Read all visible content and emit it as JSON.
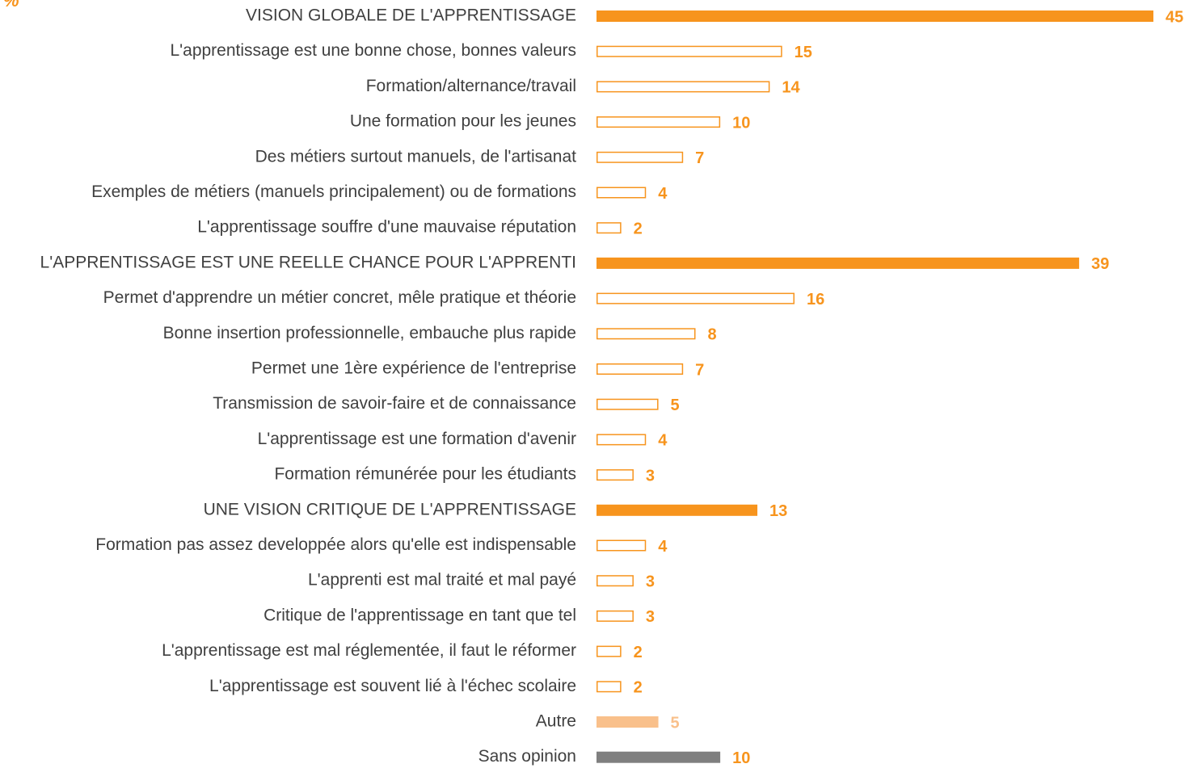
{
  "chart_data": {
    "type": "bar",
    "orientation": "horizontal",
    "unit_label": "%",
    "categories": [
      "VISION GLOBALE DE L'APPRENTISSAGE",
      "L'apprentissage est une bonne chose, bonnes valeurs",
      "Formation/alternance/travail",
      "Une formation pour les jeunes",
      "Des métiers surtout manuels, de l'artisanat",
      "Exemples de métiers (manuels principalement) ou de formations",
      "L'apprentissage souffre d'une mauvaise réputation",
      "L'APPRENTISSAGE EST UNE REELLE CHANCE POUR L'APPRENTI",
      "Permet d'apprendre un métier concret, mêle pratique et théorie",
      "Bonne insertion professionnelle, embauche plus rapide",
      "Permet une 1ère expérience de l'entreprise",
      "Transmission de savoir-faire et de connaissance",
      "L'apprentissage est une formation d'avenir",
      "Formation rémunérée pour les étudiants",
      "UNE VISION CRITIQUE DE L'APPRENTISSAGE",
      "Formation pas assez developpée alors qu'elle est indispensable",
      "L'apprenti est mal traité et mal payé",
      "Critique de l'apprentissage en tant que tel",
      "L'apprentissage est mal réglementée, il faut le réformer",
      "L'apprentissage est souvent lié à l'échec scolaire",
      "Autre",
      "Sans opinion"
    ],
    "values": [
      45,
      15,
      14,
      10,
      7,
      4,
      2,
      39,
      16,
      8,
      7,
      5,
      4,
      3,
      13,
      4,
      3,
      3,
      2,
      2,
      5,
      10
    ],
    "colors": [
      "#f7941d",
      "#f7941d",
      "#f7941d",
      "#f7941d",
      "#f7941d",
      "#f7941d",
      "#f7941d",
      "#f7941d",
      "#f7941d",
      "#f7941d",
      "#f7941d",
      "#f7941d",
      "#f7941d",
      "#f7941d",
      "#f7941d",
      "#f7941d",
      "#f7941d",
      "#f7941d",
      "#f7941d",
      "#f7941d",
      "#f9c08b",
      "#7f7f7f"
    ],
    "filled": [
      true,
      false,
      false,
      false,
      false,
      false,
      false,
      true,
      false,
      false,
      false,
      false,
      false,
      false,
      true,
      false,
      false,
      false,
      false,
      false,
      true,
      true
    ],
    "value_colors": [
      "#f7941d",
      "#f7941d",
      "#f7941d",
      "#f7941d",
      "#f7941d",
      "#f7941d",
      "#f7941d",
      "#f7941d",
      "#f7941d",
      "#f7941d",
      "#f7941d",
      "#f7941d",
      "#f7941d",
      "#f7941d",
      "#f7941d",
      "#f7941d",
      "#f7941d",
      "#f7941d",
      "#f7941d",
      "#f7941d",
      "#f9c08b",
      "#f7941d"
    ]
  }
}
